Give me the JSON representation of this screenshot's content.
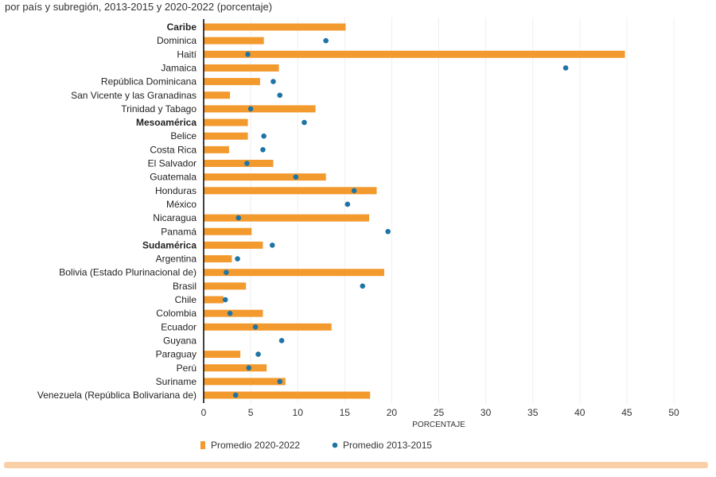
{
  "subtitle": "por país y subregión, 2013-2015 y 2020-2022 (porcentaje)",
  "chart_data": {
    "type": "bar",
    "orientation": "horizontal",
    "xlabel": "PORCENTAJE",
    "xlim": [
      0,
      50
    ],
    "xticks": [
      0,
      5,
      10,
      15,
      20,
      25,
      30,
      35,
      40,
      45,
      50
    ],
    "grid": true,
    "legend_placement": "bottom",
    "colors": {
      "bar": "#f39a2e",
      "dot": "#1f74a6"
    },
    "categories": [
      "Caribe",
      "Dominica",
      "Haití",
      "Jamaica",
      "República Dominicana",
      "San Vicente y las Granadinas",
      "Trinidad y Tabago",
      "Mesoamérica",
      "Belice",
      "Costa Rica",
      "El Salvador",
      "Guatemala",
      "Honduras",
      "México",
      "Nicaragua",
      "Panamá",
      "Sudamérica",
      "Argentina",
      "Bolivia (Estado Plurinacional de)",
      "Brasil",
      "Chile",
      "Colombia",
      "Ecuador",
      "Guyana",
      "Paraguay",
      "Perú",
      "Suriname",
      "Venezuela (República Bolivariana de)"
    ],
    "bold_categories": [
      "Caribe",
      "Mesoamérica",
      "Sudamérica"
    ],
    "series": [
      {
        "name": "Promedio 2020-2022",
        "mark": "bar",
        "values": [
          15.1,
          6.4,
          44.8,
          8.0,
          6.0,
          2.8,
          11.9,
          4.7,
          4.7,
          2.7,
          7.4,
          13.0,
          18.4,
          null,
          17.6,
          5.1,
          6.3,
          3.0,
          19.2,
          4.5,
          2.1,
          6.3,
          13.6,
          null,
          3.9,
          6.7,
          8.7,
          17.7
        ]
      },
      {
        "name": "Promedio 2013-2015",
        "mark": "dot",
        "values": [
          null,
          13.0,
          4.7,
          38.5,
          7.4,
          8.1,
          5.0,
          10.7,
          6.4,
          6.3,
          4.6,
          9.8,
          16.0,
          15.3,
          3.7,
          19.6,
          7.3,
          3.6,
          2.4,
          16.9,
          2.3,
          2.8,
          5.5,
          8.3,
          5.8,
          4.8,
          8.1,
          3.4
        ]
      }
    ]
  }
}
